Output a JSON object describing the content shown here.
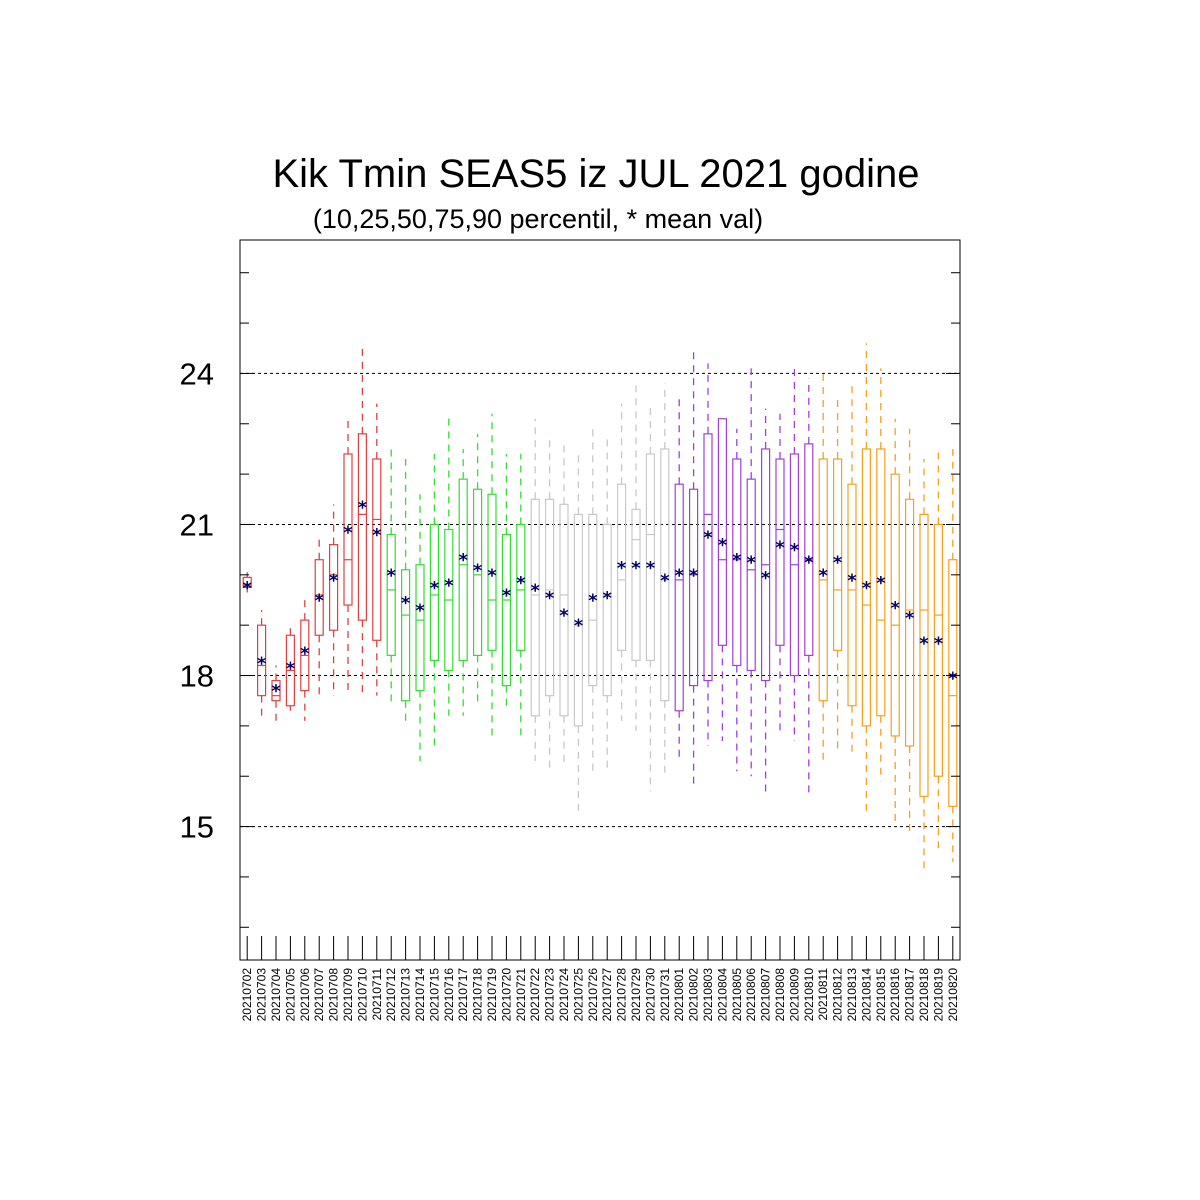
{
  "chart_data": {
    "type": "boxplot",
    "title": "Kik Tmin SEAS5 iz JUL 2021 godine",
    "subtitle": "(10,25,50,75,90 percentil, * mean val)",
    "ylim": [
      12.35,
      26.65
    ],
    "yticks": [
      15,
      18,
      21,
      24
    ],
    "ytick_labels": [
      "15",
      "18",
      "21",
      "24"
    ],
    "grid_lines": [
      15,
      18,
      21,
      24
    ],
    "mean_marker": "*",
    "mean_color": "#000066",
    "whisker_style": "dashed",
    "categories": [
      "20210702",
      "20210703",
      "20210704",
      "20210705",
      "20210706",
      "20210707",
      "20210708",
      "20210709",
      "20210710",
      "20210711",
      "20210712",
      "20210713",
      "20210714",
      "20210715",
      "20210716",
      "20210717",
      "20210718",
      "20210719",
      "20210720",
      "20210721",
      "20210722",
      "20210723",
      "20210724",
      "20210725",
      "20210726",
      "20210727",
      "20210728",
      "20210729",
      "20210730",
      "20210731",
      "20210801",
      "20210802",
      "20210803",
      "20210804",
      "20210805",
      "20210806",
      "20210807",
      "20210808",
      "20210809",
      "20210810",
      "20210811",
      "20210812",
      "20210813",
      "20210814",
      "20210815",
      "20210816",
      "20210817",
      "20210818",
      "20210819",
      "20210820"
    ],
    "colors": [
      "#e04040",
      "#e04040",
      "#e04040",
      "#e04040",
      "#e04040",
      "#e04040",
      "#e04040",
      "#e04040",
      "#e04040",
      "#e04040",
      "#33dd33",
      "#33dd33",
      "#33dd33",
      "#33dd33",
      "#33dd33",
      "#33dd33",
      "#33dd33",
      "#33dd33",
      "#33dd33",
      "#33dd33",
      "#c8c8c8",
      "#c8c8c8",
      "#c8c8c8",
      "#c8c8c8",
      "#c8c8c8",
      "#c8c8c8",
      "#c8c8c8",
      "#c8c8c8",
      "#c8c8c8",
      "#c8c8c8",
      "#a040e0",
      "#a040e0",
      "#a040e0",
      "#a040e0",
      "#a040e0",
      "#a040e0",
      "#a040e0",
      "#a040e0",
      "#a040e0",
      "#a040e0",
      "#f5a020",
      "#f5a020",
      "#f5a020",
      "#f5a020",
      "#f5a020",
      "#f5a020",
      "#f5a020",
      "#f5a020",
      "#f5a020",
      "#f5a020"
    ],
    "p10": [
      19.65,
      17.2,
      17.1,
      17.3,
      17.1,
      17.6,
      17.6,
      17.6,
      17.6,
      17.6,
      17.4,
      17.0,
      16.3,
      16.5,
      17.2,
      17.2,
      17.4,
      16.7,
      17.3,
      16.8,
      16.3,
      16.1,
      16.2,
      15.3,
      16.1,
      16.1,
      17.1,
      16.9,
      15.7,
      16.0,
      16.3,
      15.8,
      16.6,
      16.7,
      16.1,
      16.0,
      15.6,
      16.8,
      16.7,
      15.6,
      16.3,
      16.5,
      16.4,
      15.2,
      15.9,
      15.0,
      14.9,
      14.1,
      14.5,
      14.3
    ],
    "p25": [
      19.75,
      17.6,
      17.5,
      17.4,
      17.7,
      18.8,
      18.9,
      19.4,
      19.1,
      18.7,
      18.4,
      17.5,
      17.7,
      18.3,
      18.1,
      18.3,
      18.4,
      18.5,
      17.8,
      18.5,
      17.2,
      17.6,
      17.2,
      17.0,
      17.8,
      17.6,
      18.5,
      18.3,
      18.3,
      17.5,
      17.3,
      17.8,
      17.9,
      18.6,
      18.2,
      18.1,
      17.9,
      18.6,
      18.0,
      18.4,
      17.5,
      18.5,
      17.4,
      17.0,
      17.2,
      16.8,
      16.6,
      15.6,
      16.0,
      15.4
    ],
    "p50": [
      19.8,
      18.2,
      17.6,
      18.1,
      18.4,
      19.6,
      20.0,
      20.3,
      21.2,
      21.1,
      19.7,
      19.2,
      19.1,
      19.6,
      19.5,
      20.2,
      20.0,
      19.5,
      19.5,
      19.7,
      19.6,
      19.7,
      19.6,
      19.0,
      19.1,
      19.6,
      19.9,
      20.7,
      20.8,
      19.9,
      19.9,
      20.0,
      21.2,
      20.3,
      20.3,
      20.1,
      20.2,
      20.9,
      20.2,
      20.3,
      19.9,
      19.7,
      19.7,
      19.4,
      19.1,
      19.0,
      19.3,
      19.3,
      19.2,
      17.6
    ],
    "p75": [
      19.95,
      19.0,
      17.9,
      18.8,
      19.1,
      20.3,
      20.6,
      22.4,
      22.8,
      22.3,
      20.8,
      20.1,
      20.2,
      21.0,
      20.9,
      21.9,
      21.7,
      21.6,
      20.8,
      21.0,
      21.5,
      21.5,
      21.4,
      21.2,
      21.2,
      21.0,
      21.8,
      21.3,
      22.4,
      22.5,
      21.8,
      21.7,
      22.8,
      23.1,
      22.3,
      21.9,
      22.5,
      22.3,
      22.4,
      22.6,
      22.3,
      22.3,
      21.8,
      22.5,
      22.5,
      22.0,
      21.5,
      21.2,
      21.0,
      20.3
    ],
    "p90": [
      20.05,
      19.3,
      18.2,
      19.0,
      19.6,
      20.7,
      21.4,
      23.1,
      24.6,
      23.4,
      22.6,
      22.3,
      21.6,
      22.4,
      23.2,
      22.5,
      22.8,
      23.2,
      22.4,
      22.4,
      23.1,
      22.8,
      22.6,
      22.4,
      22.9,
      22.8,
      23.4,
      23.8,
      23.4,
      23.8,
      23.6,
      24.5,
      24.2,
      23.1,
      22.9,
      24.1,
      23.3,
      23.2,
      24.2,
      23.9,
      24.0,
      23.5,
      23.8,
      24.6,
      24.1,
      23.1,
      22.9,
      22.3,
      22.5,
      22.5
    ],
    "mean": [
      19.8,
      18.3,
      17.75,
      18.2,
      18.5,
      19.55,
      19.95,
      20.9,
      21.4,
      20.85,
      20.05,
      19.5,
      19.35,
      19.8,
      19.85,
      20.35,
      20.15,
      20.05,
      19.65,
      19.9,
      19.75,
      19.6,
      19.25,
      19.05,
      19.55,
      19.6,
      20.2,
      20.2,
      20.2,
      19.95,
      20.05,
      20.05,
      20.8,
      20.65,
      20.35,
      20.3,
      20.0,
      20.6,
      20.55,
      20.3,
      20.05,
      20.3,
      19.95,
      19.8,
      19.9,
      19.4,
      19.2,
      18.7,
      18.7,
      18.0
    ]
  }
}
